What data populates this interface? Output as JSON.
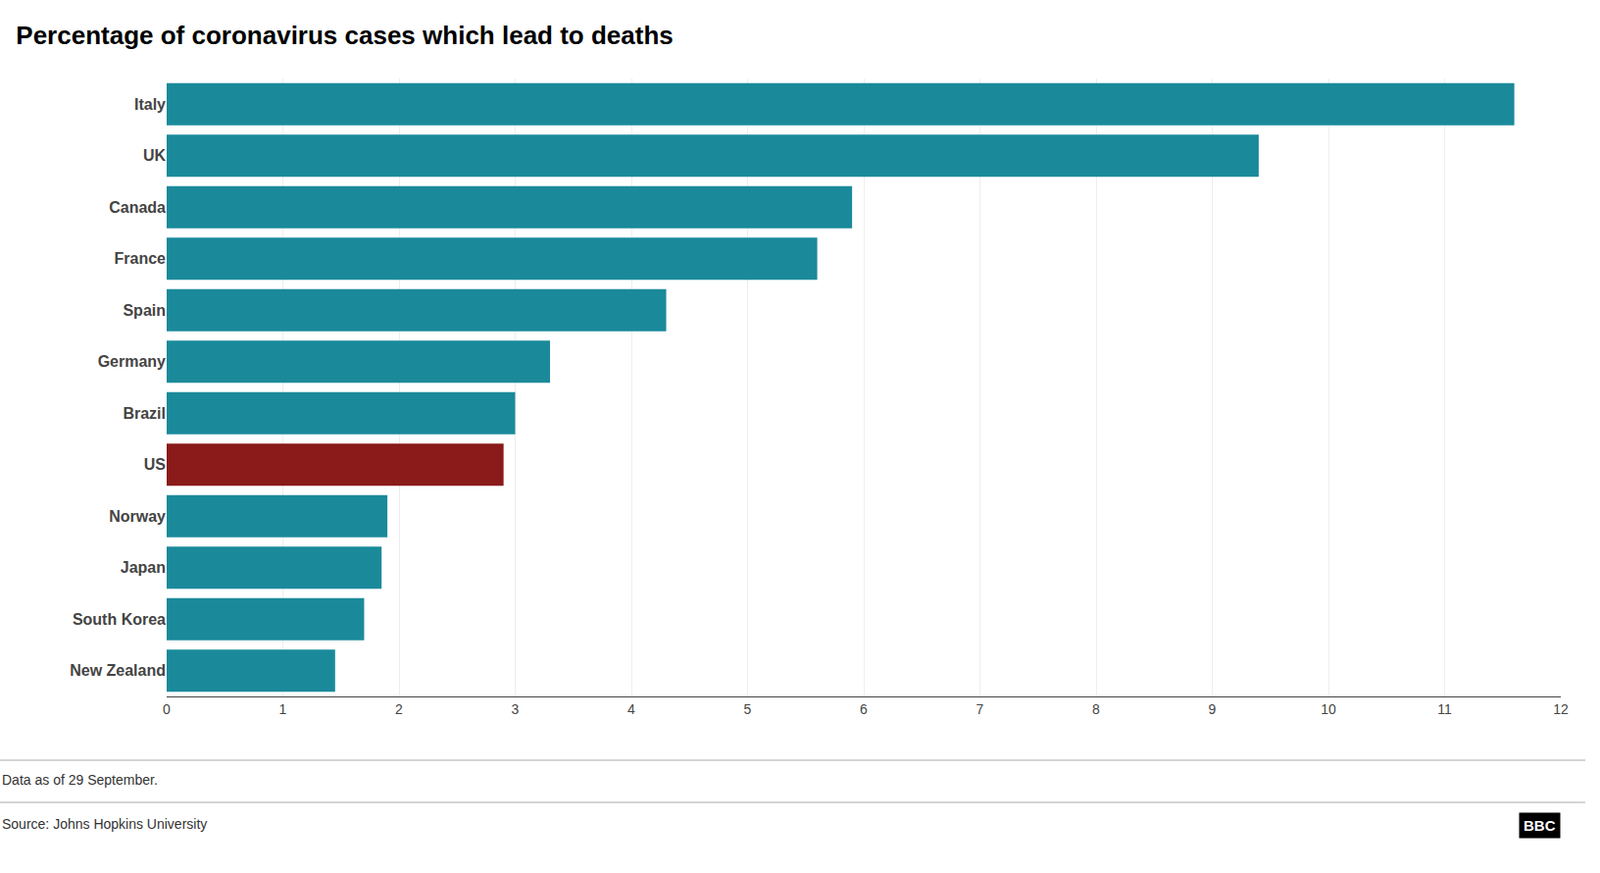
{
  "chart_data": {
    "type": "bar",
    "orientation": "horizontal",
    "title": "Percentage of coronavirus cases which lead to deaths",
    "subtitle": "Data as of 29 September.",
    "annotations": [
      "Source: Johns Hopkins University",
      "BBC"
    ],
    "categories": [
      "Italy",
      "UK",
      "Canada",
      "France",
      "Spain",
      "Germany",
      "Brazil",
      "US",
      "Norway",
      "Japan",
      "South Korea",
      "New Zealand"
    ],
    "values": [
      11.6,
      9.4,
      5.9,
      5.6,
      4.3,
      3.3,
      3.0,
      2.9,
      1.9,
      1.85,
      1.7,
      1.45
    ],
    "colors": [
      "#1a8a9b",
      "#1a8a9b",
      "#1a8a9b",
      "#1a8a9b",
      "#1a8a9b",
      "#1a8a9b",
      "#1a8a9b",
      "#8b1a1a",
      "#1a8a9b",
      "#1a8a9b",
      "#1a8a9b",
      "#1a8a9b"
    ],
    "xlim": [
      0,
      12
    ],
    "xticks": [
      0,
      1,
      2,
      3,
      4,
      5,
      6,
      7,
      8,
      9,
      10,
      11,
      12
    ],
    "grid": true
  }
}
